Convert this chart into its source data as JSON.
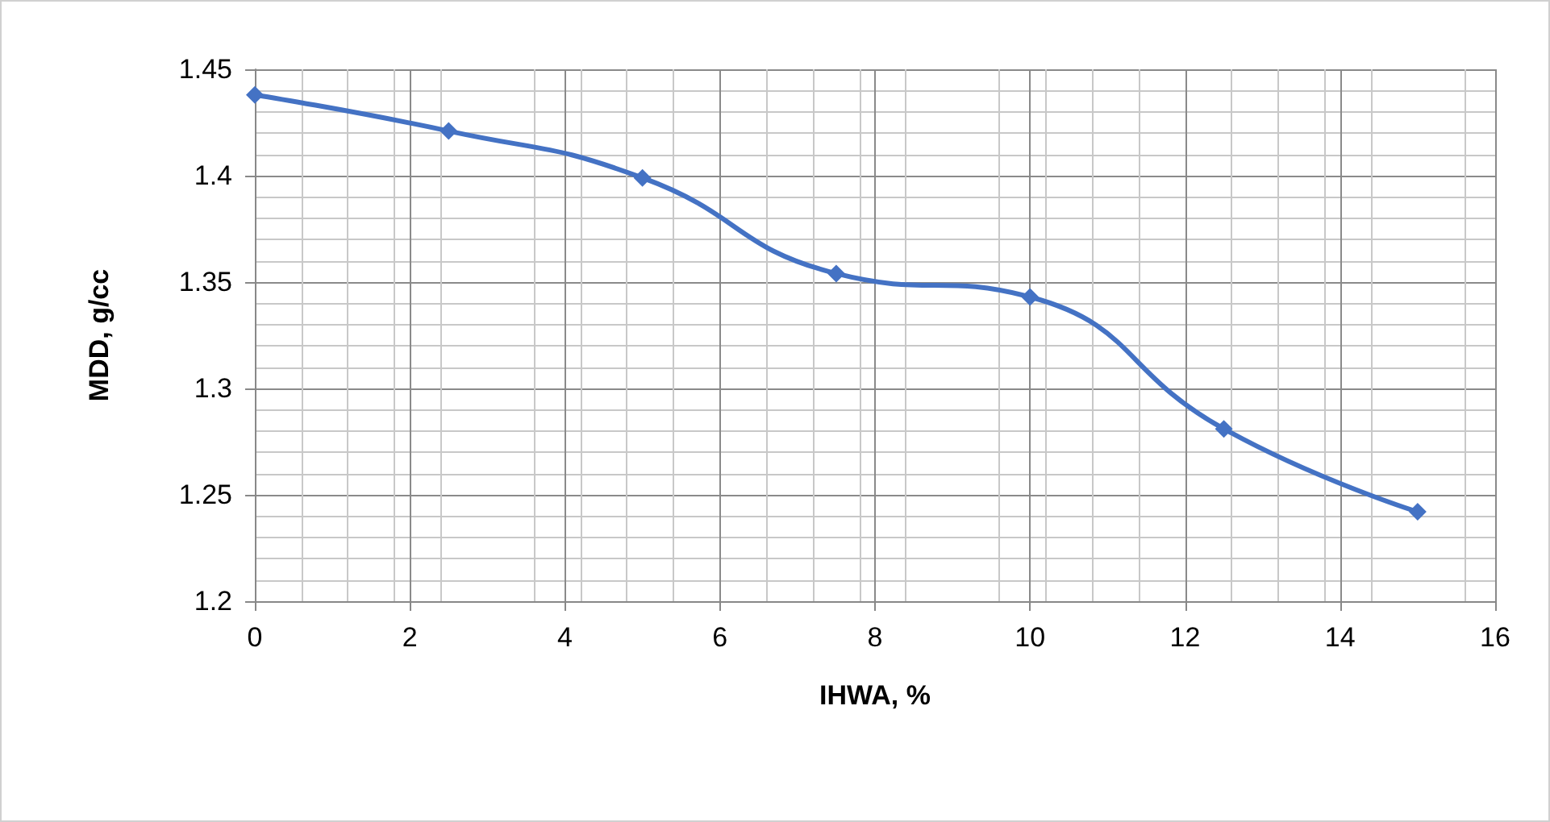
{
  "chart_data": {
    "type": "line",
    "xlabel": "IHWA, %",
    "ylabel": "MDD, g/cc",
    "x": [
      0,
      2.5,
      5,
      7.5,
      10,
      12.5,
      15
    ],
    "series": [
      {
        "color": "#4472c4",
        "values": [
          1.438,
          1.421,
          1.399,
          1.354,
          1.343,
          1.281,
          1.242
        ]
      }
    ],
    "xlim": [
      0,
      16
    ],
    "xticks": [
      0,
      2,
      4,
      6,
      8,
      10,
      12,
      14,
      16
    ],
    "ylim": [
      1.2,
      1.45
    ],
    "yticks": [
      1.2,
      1.25,
      1.3,
      1.35,
      1.4,
      1.45
    ],
    "grid": true,
    "marker": "diamond",
    "line_style": "solid"
  }
}
